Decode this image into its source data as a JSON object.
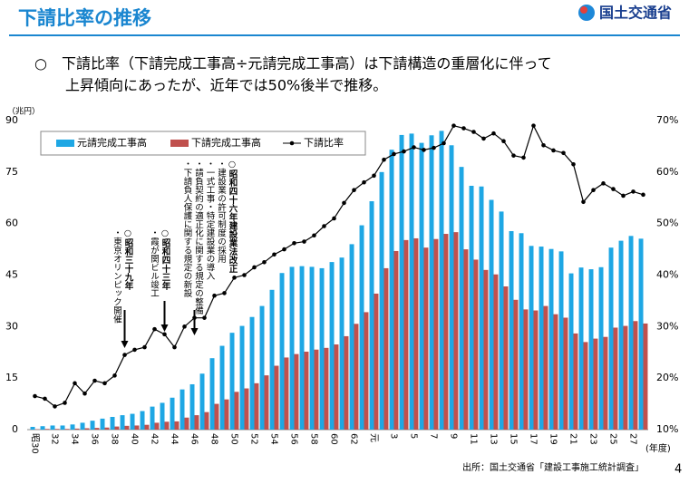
{
  "header": {
    "title": "下請比率の推移",
    "logo": "国土交通省",
    "bullets": [
      "○　下請比率（下請完成工事高÷元請完成工事高）は下請構造の重層化に伴って",
      "上昇傾向にあったが、近年では50%後半で推移。"
    ],
    "source": "出所：国土交通省「建設工事施工統計調査」",
    "page": "4"
  },
  "chart_data": {
    "type": "bar",
    "y_label": "（兆円）",
    "x_label": "(年度)",
    "categories": [
      "昭30",
      null,
      "32",
      null,
      "34",
      null,
      "36",
      null,
      "38",
      null,
      "40",
      null,
      "42",
      null,
      "44",
      null,
      "46",
      null,
      "48",
      null,
      "50",
      null,
      "52",
      null,
      "54",
      null,
      "56",
      null,
      "58",
      null,
      "60",
      null,
      "62",
      null,
      "元",
      null,
      "3",
      null,
      "5",
      null,
      "7",
      null,
      "9",
      null,
      "11",
      null,
      "13",
      null,
      "15",
      null,
      "17",
      null,
      "19",
      null,
      "21",
      null,
      "23",
      null,
      "25",
      null,
      "27",
      null
    ],
    "series": [
      {
        "name": "元請完成工事高",
        "color": "#1ea7e4",
        "values": [
          0.8,
          1.0,
          1.2,
          1.2,
          1.5,
          2.0,
          2.6,
          3.2,
          3.7,
          4.2,
          4.6,
          5.4,
          6.7,
          7.8,
          9.3,
          11.7,
          13.2,
          16.3,
          20.8,
          24.4,
          28.2,
          30.2,
          32.8,
          36.0,
          40.7,
          45.6,
          47.4,
          47.6,
          47.4,
          47.0,
          48.8,
          50.1,
          54.0,
          59.5,
          66.5,
          75.0,
          81.5,
          85.8,
          86.2,
          83.5,
          85.7,
          87.0,
          82.8,
          76.5,
          71.0,
          70.8,
          66.9,
          63.5,
          57.8,
          57.2,
          53.5,
          53.3,
          52.6,
          51.9,
          45.5,
          47.2,
          46.7,
          47.3,
          53.0,
          55.0,
          56.4,
          55.6
        ]
      },
      {
        "name": "下請完成工事高",
        "color": "#c0504d",
        "values": [
          0.1,
          0.2,
          0.2,
          0.2,
          0.3,
          0.4,
          0.5,
          0.6,
          0.9,
          1.1,
          1.2,
          1.4,
          2.0,
          2.3,
          2.4,
          3.5,
          4.2,
          5.1,
          7.5,
          8.8,
          11.0,
          12.0,
          13.5,
          15.8,
          18.6,
          21.0,
          22.0,
          22.7,
          23.3,
          23.8,
          24.8,
          27.2,
          30.8,
          34.2,
          39.6,
          47.0,
          52.0,
          55.2,
          55.7,
          53.0,
          55.5,
          57.0,
          57.5,
          52.5,
          49.5,
          46.5,
          45.2,
          41.7,
          37.8,
          35.0,
          34.7,
          36.0,
          33.6,
          32.6,
          28.0,
          25.5,
          26.5,
          27.0,
          29.7,
          30.2,
          31.6,
          30.9
        ]
      },
      {
        "name": "下請比率",
        "color": "#000000",
        "type": "line",
        "axis": "y2",
        "values": [
          16.5,
          16,
          14.5,
          15.2,
          19,
          17,
          19.5,
          19,
          20.5,
          24.5,
          25.5,
          26,
          29.5,
          28.5,
          26,
          30,
          31.7,
          31.7,
          36,
          36.5,
          39.5,
          40,
          41.5,
          42.5,
          44,
          45,
          46.2,
          46.5,
          47.7,
          49.5,
          51,
          54,
          56.5,
          58,
          59.3,
          62.4,
          63.5,
          64,
          64.8,
          64.3,
          64.7,
          65.6,
          69,
          68.5,
          67.8,
          66.5,
          67.5,
          66,
          63.2,
          62.8,
          69,
          65.2,
          64.2,
          63.7,
          61.5,
          54.2,
          56.5,
          57.8,
          56.7,
          55.4,
          56.2,
          55.6
        ]
      }
    ],
    "ylim": [
      0,
      90
    ],
    "yticks": [
      0,
      15,
      30,
      45,
      60,
      75,
      90
    ],
    "y2lim": [
      10,
      70
    ],
    "y2ticks": [
      {
        "value": 10,
        "label": "10%"
      },
      {
        "value": 20,
        "label": "20%"
      },
      {
        "value": 30,
        "label": "30%"
      },
      {
        "value": 40,
        "label": "40%"
      },
      {
        "value": 50,
        "label": "50%"
      },
      {
        "value": 60,
        "label": "60%"
      },
      {
        "value": 70,
        "label": "70%"
      }
    ],
    "grid": false,
    "annotations": [
      [
        "○昭和三十九年",
        "・東京オリンピック開催"
      ],
      [
        "○昭和四十三年",
        "・霞が関ビル竣工"
      ],
      [
        "○昭和四十六年建設業法改正",
        "・建設業の許可制度の採用",
        "・一式工事・特定建設業の導入",
        "・請負契約の適正化に関する規定の整備",
        "・下請負人保護に関する規定の新設"
      ]
    ]
  }
}
